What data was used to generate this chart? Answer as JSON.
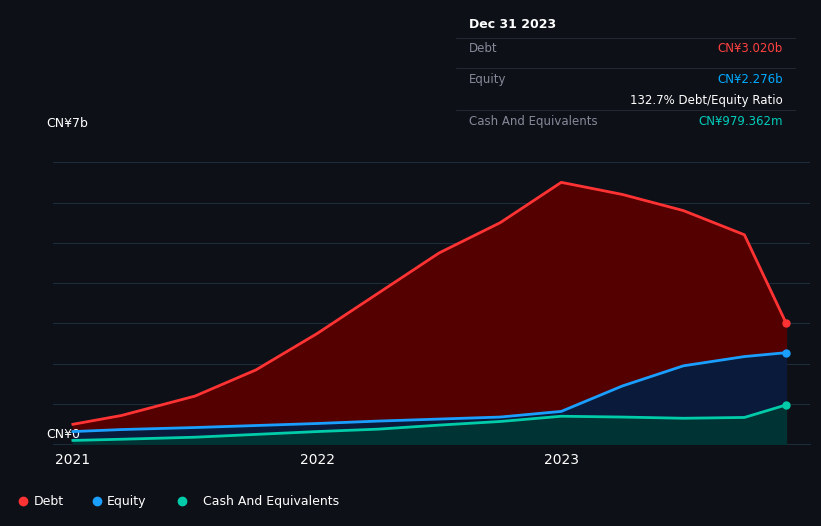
{
  "background_color": "#0d1117",
  "grid_color": "#1e2d3d",
  "tooltip": {
    "date": "Dec 31 2023",
    "debt_label": "Debt",
    "debt_value": "CN¥3.020b",
    "debt_color": "#ff4040",
    "equity_label": "Equity",
    "equity_value": "CN¥2.276b",
    "equity_color": "#00aaff",
    "ratio_text": "132.7% Debt/Equity Ratio",
    "ratio_bold": "132.7%",
    "ratio_normal": " Debt/Equity Ratio",
    "cash_label": "Cash And Equivalents",
    "cash_value": "CN¥979.362m",
    "cash_color": "#00ccbb",
    "divider_color": "#2a2a3a",
    "label_color": "#888899",
    "box_bg": "#0a0a0f",
    "box_border": "#2a2a3a"
  },
  "debt_color": "#ff3333",
  "debt_fill": "#550000",
  "equity_color": "#1a9fff",
  "equity_fill": "#0a1a3a",
  "cash_color": "#00ccaa",
  "cash_fill": "#003333",
  "debt_x": [
    2021.0,
    2021.2,
    2021.5,
    2021.75,
    2022.0,
    2022.25,
    2022.5,
    2022.75,
    2023.0,
    2023.25,
    2023.5,
    2023.75,
    2023.92
  ],
  "debt_y": [
    0.5,
    0.72,
    1.2,
    1.85,
    2.75,
    3.75,
    4.75,
    5.5,
    6.5,
    6.2,
    5.8,
    5.2,
    3.02
  ],
  "equity_x": [
    2021.0,
    2021.2,
    2021.5,
    2021.75,
    2022.0,
    2022.25,
    2022.5,
    2022.75,
    2023.0,
    2023.25,
    2023.5,
    2023.75,
    2023.92
  ],
  "equity_y": [
    0.32,
    0.37,
    0.42,
    0.47,
    0.52,
    0.58,
    0.63,
    0.68,
    0.82,
    1.45,
    1.95,
    2.18,
    2.276
  ],
  "cash_x": [
    2021.0,
    2021.2,
    2021.5,
    2021.75,
    2022.0,
    2022.25,
    2022.5,
    2022.75,
    2023.0,
    2023.25,
    2023.5,
    2023.75,
    2023.92
  ],
  "cash_y": [
    0.1,
    0.13,
    0.18,
    0.25,
    0.32,
    0.38,
    0.48,
    0.57,
    0.7,
    0.68,
    0.65,
    0.67,
    0.979
  ],
  "xlim": [
    2020.92,
    2024.02
  ],
  "ylim": [
    0,
    7.5
  ],
  "y_top_label": "CN¥7b",
  "y_bot_label": "CN¥0",
  "x_ticks": [
    2021,
    2022,
    2023
  ],
  "legend": [
    {
      "label": "Debt",
      "color": "#ff3333"
    },
    {
      "label": "Equity",
      "color": "#1a9fff"
    },
    {
      "label": "Cash And Equivalents",
      "color": "#00ccaa"
    }
  ]
}
